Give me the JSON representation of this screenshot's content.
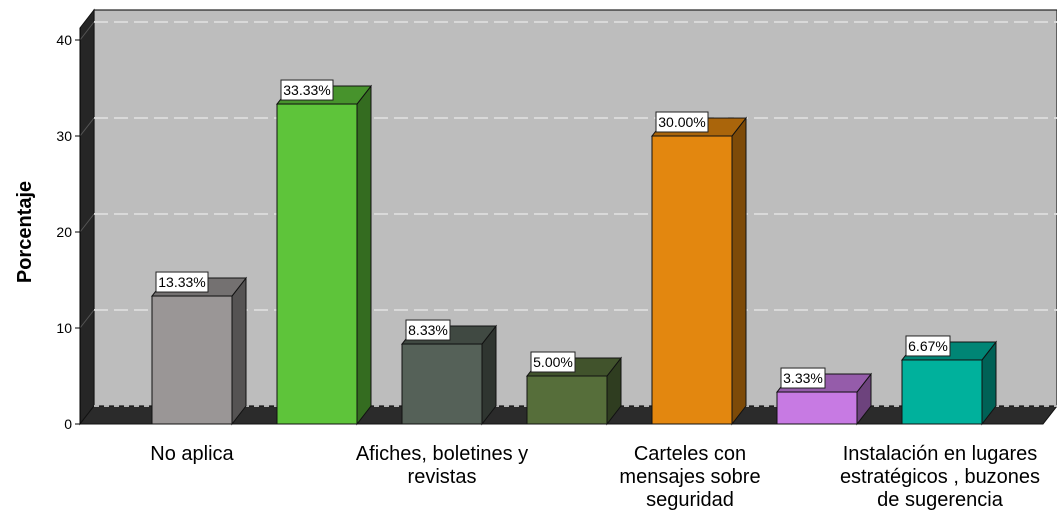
{
  "chart_data": {
    "type": "bar",
    "title": "",
    "xlabel": "",
    "ylabel": "Porcentaje",
    "ylim": [
      0,
      40
    ],
    "yticks": [
      0,
      10,
      20,
      30,
      40
    ],
    "grid": true,
    "categories_labeled": [
      [
        "No aplica"
      ],
      [
        "Afiches, boletines y",
        "revistas"
      ],
      [
        "Carteles con",
        "mensajes sobre",
        "seguridad"
      ],
      [
        "Instalación en lugares",
        "estratégicos , buzones",
        "de sugerencia"
      ]
    ],
    "bars": [
      {
        "value": 13.33,
        "label": "13.33%",
        "color": "#9a9696"
      },
      {
        "value": 33.33,
        "label": "33.33%",
        "color": "#5ec43a"
      },
      {
        "value": 8.33,
        "label": "8.33%",
        "color": "#556158"
      },
      {
        "value": 5.0,
        "label": "5.00%",
        "color": "#566e3a"
      },
      {
        "value": 30.0,
        "label": "30.00%",
        "color": "#e3870f"
      },
      {
        "value": 3.33,
        "label": "3.33%",
        "color": "#c77ae3"
      },
      {
        "value": 6.67,
        "label": "6.67%",
        "color": "#00b19c"
      }
    ],
    "colors": {
      "plot_background": "#bdbdbd",
      "floor": "#2b2b2b",
      "gridline": "#d9d9d9"
    }
  }
}
